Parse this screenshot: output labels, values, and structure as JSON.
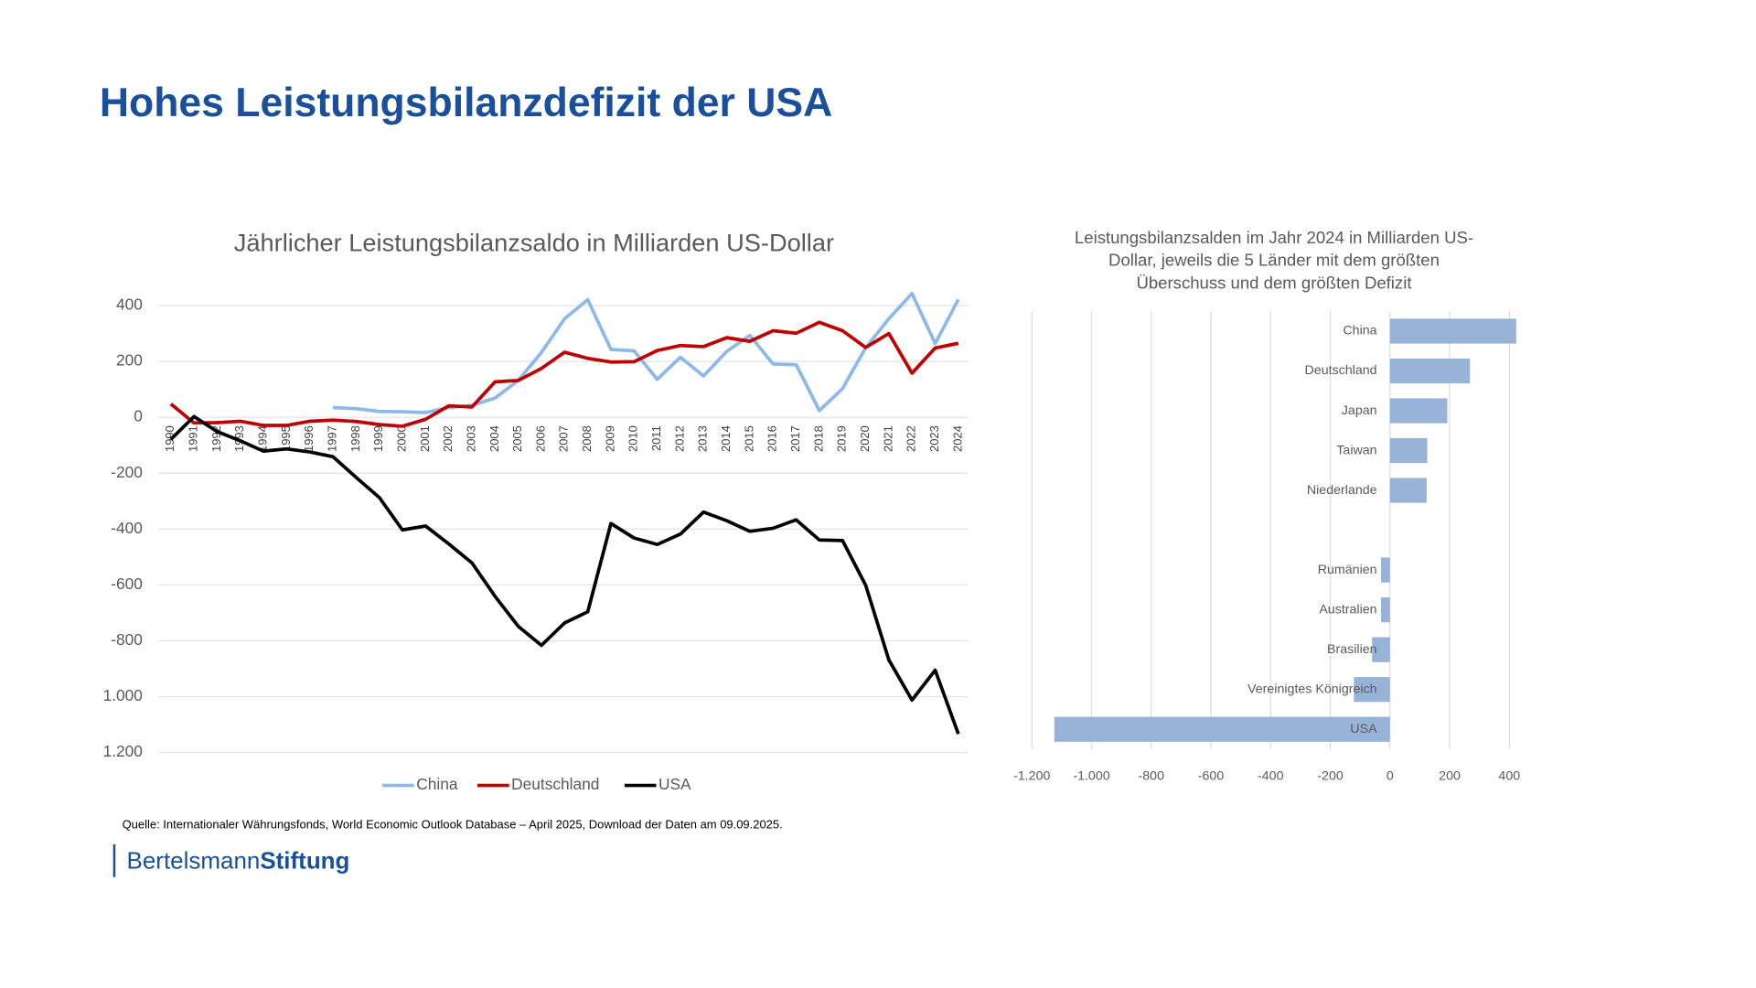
{
  "header": {
    "title": "Hohes Leistungsbilanzdefizit der USA"
  },
  "chart_data": [
    {
      "type": "line",
      "title": "Jährlicher Leistungsbilanzsaldo in Milliarden US-Dollar",
      "categories": [
        "1990",
        "1991",
        "1992",
        "1993",
        "1994",
        "1995",
        "1996",
        "1997",
        "1998",
        "1999",
        "2000",
        "2001",
        "2002",
        "2003",
        "2004",
        "2005",
        "2006",
        "2007",
        "2008",
        "2009",
        "2010",
        "2011",
        "2012",
        "2013",
        "2014",
        "2015",
        "2016",
        "2017",
        "2018",
        "2019",
        "2020",
        "2021",
        "2022",
        "2023",
        "2024"
      ],
      "series": [
        {
          "name": "China",
          "color": "#8db8ea",
          "values": [
            null,
            null,
            null,
            null,
            null,
            null,
            null,
            35,
            31,
            21,
            20,
            17,
            35,
            43,
            69,
            132,
            232,
            353,
            421,
            243,
            238,
            136,
            215,
            148,
            236,
            293,
            191,
            188,
            24,
            103,
            249,
            353,
            443,
            264,
            422
          ]
        },
        {
          "name": "Deutschland",
          "color": "#c00000",
          "values": [
            48,
            -20,
            -19,
            -14,
            -29,
            -29,
            -14,
            -10,
            -15,
            -26,
            -32,
            -7,
            41,
            37,
            127,
            132,
            175,
            233,
            211,
            198,
            199,
            239,
            257,
            253,
            285,
            272,
            310,
            301,
            340,
            310,
            250,
            300,
            158,
            248,
            265
          ]
        },
        {
          "name": "USA",
          "color": "#000000",
          "values": [
            -79,
            3,
            -51,
            -84,
            -121,
            -113,
            -124,
            -141,
            -215,
            -287,
            -403,
            -389,
            -453,
            -521,
            -641,
            -748,
            -816,
            -736,
            -696,
            -380,
            -432,
            -455,
            -418,
            -339,
            -370,
            -408,
            -397,
            -367,
            -439,
            -441,
            -601,
            -868,
            -1012,
            -905,
            -1133
          ]
        }
      ],
      "ylim": [
        -1200,
        400
      ],
      "yticks": [
        400,
        200,
        0,
        -200,
        -400,
        -600,
        -800,
        {
          "value": -1000,
          "label": "1.000"
        },
        {
          "value": -1200,
          "label": "1.200"
        }
      ],
      "grid": true,
      "legend": "bottom"
    },
    {
      "type": "bar",
      "orientation": "horizontal",
      "title": [
        "Leistungsbilanzsalden im Jahr 2024 in Milliarden US-",
        "Dollar, jeweils die 5 Länder mit dem größten",
        "Überschuss und dem größten Defizit"
      ],
      "categories": [
        "China",
        "Deutschland",
        "Japan",
        "Taiwan",
        "Niederlande",
        null,
        "Rumänien",
        "Australien",
        "Brasilien",
        "Vereinigtes Königreich",
        "USA"
      ],
      "values": [
        423,
        268,
        192,
        125,
        123,
        null,
        -30,
        -30,
        -60,
        -121,
        -1125
      ],
      "color": "#97b3d8",
      "xlim": [
        -1200,
        400
      ],
      "xticks": [
        {
          "value": -1200,
          "label": "-1.200"
        },
        {
          "value": -1000,
          "label": "-1.000"
        },
        -800,
        -600,
        -400,
        -200,
        0,
        200,
        400
      ],
      "grid": true
    }
  ],
  "source": "Quelle: Internationaler Währungsfonds, World Economic Outlook Database – April 2025, Download der Daten am 09.09.2025.",
  "logo": {
    "part1": "Bertelsmann",
    "part2": "Stiftung"
  }
}
